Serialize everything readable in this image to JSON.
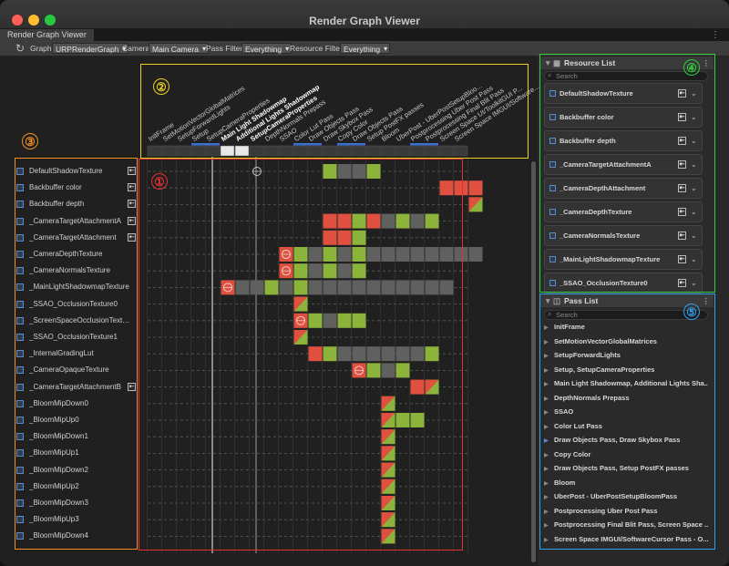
{
  "window": {
    "title": "Render Graph Viewer",
    "tab": "Render Graph Viewer"
  },
  "toolbar": {
    "graph_label": "Graph",
    "graph_value": "URPRenderGraph",
    "camera_label": "Camera",
    "camera_value": "Main Camera",
    "pass_filter_label": "Pass Filter",
    "pass_filter_value": "Everything",
    "resource_filter_label": "Resource Filter",
    "resource_filter_value": "Everything"
  },
  "passes": [
    {
      "label": "InitFrame",
      "bold": false
    },
    {
      "label": "SetMotionVectorGlobalMatrices",
      "bold": false
    },
    {
      "label": "SetupForwardLights",
      "bold": false
    },
    {
      "label": "Setup",
      "bold": false
    },
    {
      "label": "SetupCameraProperties",
      "bold": false
    },
    {
      "label": "Main Light Shadowmap",
      "bold": true
    },
    {
      "label": "Additional Lights Shadowmap",
      "bold": true
    },
    {
      "label": "SetupCameraProperties",
      "bold": true
    },
    {
      "label": "DepthNormals Prepass",
      "bold": false
    },
    {
      "label": "SSAO",
      "bold": false
    },
    {
      "label": "Color Lut Pass",
      "bold": false
    },
    {
      "label": "Draw Objects Pass",
      "bold": false
    },
    {
      "label": "Draw Skybox Pass",
      "bold": false
    },
    {
      "label": "Copy Color",
      "bold": false
    },
    {
      "label": "Draw Objects Pass",
      "bold": false
    },
    {
      "label": "Setup PostFX passes",
      "bold": false
    },
    {
      "label": "Bloom",
      "bold": false
    },
    {
      "label": "UberPost - UberPostSetupBloo...",
      "bold": false
    },
    {
      "label": "Postprocessing Uber Post Pass",
      "bold": false
    },
    {
      "label": "Postprocessing Final Blit Pass",
      "bold": false
    },
    {
      "label": "Screen Space UI/ToolkitGUI P...",
      "bold": false
    },
    {
      "label": "Screen Space IMGUI/Software...",
      "bold": false
    }
  ],
  "resources": [
    {
      "name": "DefaultShadowTexture",
      "imported": true
    },
    {
      "name": "Backbuffer color",
      "imported": true
    },
    {
      "name": "Backbuffer depth",
      "imported": true
    },
    {
      "name": "_CameraTargetAttachmentA",
      "imported": true
    },
    {
      "name": "_CameraTargetAttachment",
      "imported": true
    },
    {
      "name": "_CameraDepthTexture",
      "imported": false
    },
    {
      "name": "_CameraNormalsTexture",
      "imported": false
    },
    {
      "name": "_MainLightShadowmapTexture",
      "imported": false
    },
    {
      "name": "_SSAO_OcclusionTexture0",
      "imported": false
    },
    {
      "name": "_ScreenSpaceOcclusionTextu...",
      "imported": false
    },
    {
      "name": "_SSAO_OcclusionTexture1",
      "imported": false
    },
    {
      "name": "_InternalGradingLut",
      "imported": false
    },
    {
      "name": "_CameraOpaqueTexture",
      "imported": false
    },
    {
      "name": "_CameraTargetAttachmentB",
      "imported": true
    },
    {
      "name": "_BloomMipDown0",
      "imported": false
    },
    {
      "name": "_BloomMipUp0",
      "imported": false
    },
    {
      "name": "_BloomMipDown1",
      "imported": false
    },
    {
      "name": "_BloomMipUp1",
      "imported": false
    },
    {
      "name": "_BloomMipDown2",
      "imported": false
    },
    {
      "name": "_BloomMipUp2",
      "imported": false
    },
    {
      "name": "_BloomMipDown3",
      "imported": false
    },
    {
      "name": "_BloomMipUp3",
      "imported": false
    },
    {
      "name": "_BloomMipDown4",
      "imported": false
    }
  ],
  "resource_list": {
    "title": "Resource List",
    "search_placeholder": "Search",
    "items": [
      "DefaultShadowTexture",
      "Backbuffer color",
      "Backbuffer depth",
      "_CameraTargetAttachmentA",
      "_CameraDepthAttachment",
      "_CameraDepthTexture",
      "_CameraNormalsTexture",
      "_MainLightShadowmapTexture",
      "_SSAO_OcclusionTexture0"
    ]
  },
  "pass_list": {
    "title": "Pass List",
    "search_placeholder": "Search",
    "items": [
      "InitFrame",
      "SetMotionVectorGlobalMatrices",
      "SetupForwardLights",
      "Setup, SetupCameraProperties",
      "Main Light Shadowmap, Additional Lights Sha...",
      "DepthNormals Prepass",
      "SSAO",
      "Color Lut Pass",
      "Draw Objects Pass, Draw Skybox Pass",
      "Copy Color",
      "Draw Objects Pass, Setup PostFX passes",
      "Bloom",
      "UberPost - UberPostSetupBloomPass",
      "Postprocessing Uber Post Pass",
      "Postprocessing Final Blit Pass, Screen Space ...",
      "Screen Space IMGUI/SoftwareCursor Pass - O..."
    ],
    "expanded_index": 8
  },
  "annotations": [
    {
      "label": "①",
      "color": "#e83030"
    },
    {
      "label": "②",
      "color": "#e8d020"
    },
    {
      "label": "③",
      "color": "#f09020"
    },
    {
      "label": "④",
      "color": "#30d040"
    },
    {
      "label": "⑤",
      "color": "#30a0f0"
    }
  ],
  "cell_rows": [
    {
      "r": 0,
      "cells": [
        [
          12,
          "G"
        ],
        [
          13,
          "D"
        ],
        [
          14,
          "D"
        ],
        [
          15,
          "G"
        ]
      ],
      "globe": 7
    },
    {
      "r": 1,
      "cells": [
        [
          20,
          "R"
        ],
        [
          21,
          "R"
        ],
        [
          22,
          "R"
        ]
      ]
    },
    {
      "r": 2,
      "cells": [
        [
          22,
          "T"
        ]
      ]
    },
    {
      "r": 3,
      "cells": [
        [
          12,
          "R"
        ],
        [
          13,
          "R"
        ],
        [
          14,
          "G"
        ],
        [
          15,
          "R"
        ],
        [
          16,
          "D"
        ],
        [
          17,
          "G"
        ],
        [
          18,
          "D"
        ],
        [
          19,
          "G"
        ]
      ]
    },
    {
      "r": 4,
      "cells": [
        [
          12,
          "R"
        ],
        [
          13,
          "R"
        ],
        [
          14,
          "G"
        ]
      ]
    },
    {
      "r": 5,
      "cells": [
        [
          9,
          "GLOBE"
        ],
        [
          10,
          "G"
        ],
        [
          11,
          "D"
        ],
        [
          12,
          "G"
        ],
        [
          13,
          "D"
        ],
        [
          14,
          "G"
        ],
        [
          15,
          "D"
        ],
        [
          16,
          "D"
        ],
        [
          17,
          "D"
        ],
        [
          18,
          "D"
        ],
        [
          19,
          "D"
        ],
        [
          20,
          "D"
        ],
        [
          21,
          "D"
        ],
        [
          22,
          "D"
        ]
      ]
    },
    {
      "r": 6,
      "cells": [
        [
          9,
          "GLOBE"
        ],
        [
          10,
          "G"
        ],
        [
          11,
          "D"
        ],
        [
          12,
          "G"
        ],
        [
          13,
          "D"
        ],
        [
          14,
          "G"
        ]
      ]
    },
    {
      "r": 7,
      "cells": [
        [
          5,
          "GLOBE"
        ],
        [
          6,
          "D"
        ],
        [
          7,
          "D"
        ],
        [
          8,
          "G"
        ],
        [
          9,
          "D"
        ],
        [
          10,
          "G"
        ],
        [
          11,
          "D"
        ],
        [
          12,
          "D"
        ],
        [
          13,
          "D"
        ],
        [
          14,
          "D"
        ],
        [
          15,
          "D"
        ],
        [
          16,
          "D"
        ],
        [
          17,
          "D"
        ],
        [
          18,
          "D"
        ],
        [
          19,
          "D"
        ],
        [
          20,
          "D"
        ]
      ]
    },
    {
      "r": 8,
      "cells": [
        [
          10,
          "T"
        ]
      ]
    },
    {
      "r": 9,
      "cells": [
        [
          10,
          "GLOBE"
        ],
        [
          11,
          "G"
        ],
        [
          12,
          "D"
        ],
        [
          13,
          "G"
        ],
        [
          14,
          "G"
        ]
      ]
    },
    {
      "r": 10,
      "cells": [
        [
          10,
          "T"
        ]
      ]
    },
    {
      "r": 11,
      "cells": [
        [
          11,
          "R"
        ],
        [
          12,
          "G"
        ],
        [
          13,
          "D"
        ],
        [
          14,
          "D"
        ],
        [
          15,
          "D"
        ],
        [
          16,
          "D"
        ],
        [
          17,
          "D"
        ],
        [
          18,
          "D"
        ],
        [
          19,
          "G"
        ]
      ]
    },
    {
      "r": 12,
      "cells": [
        [
          14,
          "GLOBE"
        ],
        [
          15,
          "G"
        ],
        [
          16,
          "D"
        ],
        [
          17,
          "G"
        ]
      ]
    },
    {
      "r": 13,
      "cells": [
        [
          18,
          "R"
        ],
        [
          19,
          "T"
        ]
      ]
    },
    {
      "r": 14,
      "cells": [
        [
          16,
          "T"
        ]
      ]
    },
    {
      "r": 15,
      "cells": [
        [
          16,
          "T"
        ],
        [
          17,
          "G"
        ],
        [
          18,
          "G"
        ]
      ]
    },
    {
      "r": 16,
      "cells": [
        [
          16,
          "T"
        ]
      ]
    },
    {
      "r": 17,
      "cells": [
        [
          16,
          "T"
        ]
      ]
    },
    {
      "r": 18,
      "cells": [
        [
          16,
          "T"
        ]
      ]
    },
    {
      "r": 19,
      "cells": [
        [
          16,
          "T"
        ]
      ]
    },
    {
      "r": 20,
      "cells": [
        [
          16,
          "T"
        ]
      ]
    },
    {
      "r": 21,
      "cells": [
        [
          16,
          "T"
        ]
      ]
    },
    {
      "r": 22,
      "cells": [
        [
          16,
          "T"
        ]
      ]
    }
  ],
  "colors": {
    "write": "#e05040",
    "read": "#8cb43a",
    "unused": "#606060",
    "accent": "#3b6fd0"
  }
}
